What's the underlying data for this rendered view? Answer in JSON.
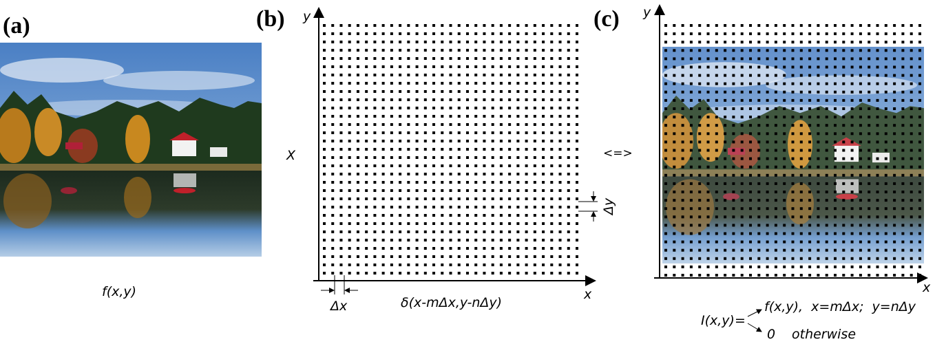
{
  "panel_a": {
    "label": "(a)",
    "caption": "f(x,y)"
  },
  "panel_b": {
    "label": "(b)",
    "y_axis": "y",
    "x_axis": "x",
    "side_label": "X",
    "delta_y": "Δy",
    "delta_x": "Δx",
    "caption": "δ(x-mΔx,y-nΔy)"
  },
  "equivalence": "<=>",
  "panel_c": {
    "label": "(c)",
    "y_axis": "y",
    "x_axis": "x",
    "formula": {
      "lhs": "I(x,y)=",
      "case1": "f(x,y),  x=mΔx;  y=nΔy",
      "case2_value": "0",
      "case2_condition": "otherwise"
    }
  }
}
